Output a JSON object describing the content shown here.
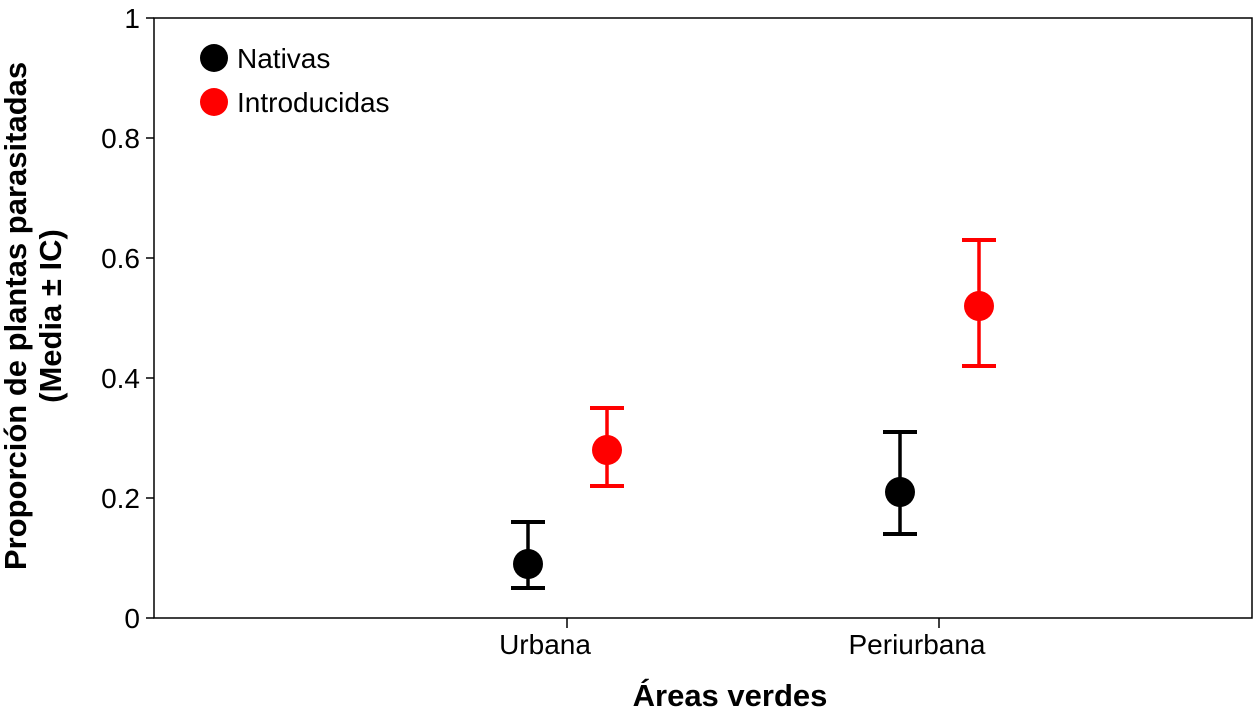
{
  "chart_data": {
    "type": "scatter",
    "xlabel": "Áreas verdes",
    "ylabel_line1": "Proporción de plantas parasitadas",
    "ylabel_line2": "(Media ± IC)",
    "ylim": [
      0,
      1
    ],
    "y_ticks": [
      {
        "value": 0,
        "label": "0"
      },
      {
        "value": 0.2,
        "label": "0.2"
      },
      {
        "value": 0.4,
        "label": "0.4"
      },
      {
        "value": 0.6,
        "label": "0.6"
      },
      {
        "value": 0.8,
        "label": "0.8"
      },
      {
        "value": 1,
        "label": "1"
      }
    ],
    "categories": [
      "Urbana",
      "Periurbana"
    ],
    "grid": false,
    "legend_position": "top-left",
    "series": [
      {
        "name": "Nativas",
        "color": "#000000",
        "values": [
          0.09,
          0.21
        ],
        "ci_lower": [
          0.05,
          0.14
        ],
        "ci_upper": [
          0.16,
          0.31
        ]
      },
      {
        "name": "Introducidas",
        "color": "#ff0000",
        "values": [
          0.28,
          0.52
        ],
        "ci_lower": [
          0.22,
          0.42
        ],
        "ci_upper": [
          0.35,
          0.63
        ]
      }
    ]
  }
}
